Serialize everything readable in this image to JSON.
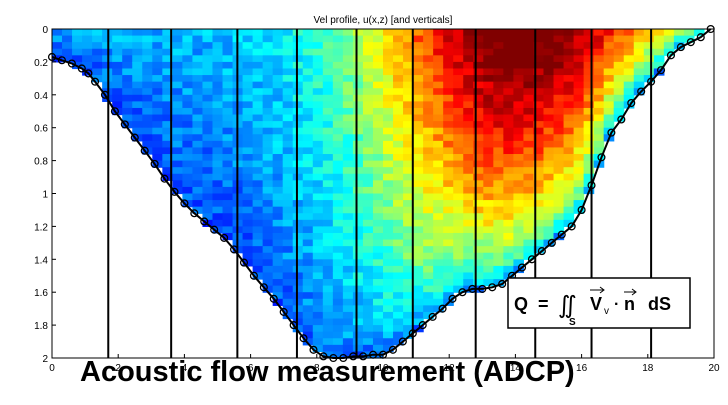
{
  "chart_data": {
    "type": "heatmap",
    "title": "Vel profile, u(x,z) [and verticals]",
    "x_ticks": [
      0,
      2,
      4,
      6,
      8,
      10,
      12,
      14,
      16,
      18,
      20
    ],
    "y_ticks": [
      0,
      0.2,
      0.4,
      0.6,
      0.8,
      1,
      1.2,
      1.4,
      1.6,
      1.8,
      2
    ],
    "xlim": [
      0,
      20
    ],
    "ylim": [
      2,
      0
    ],
    "colormap": "jet",
    "velocity_range_relative": [
      0,
      1
    ],
    "verticals_x": [
      1.7,
      3.6,
      5.6,
      7.4,
      9.2,
      10.9,
      12.8,
      14.6,
      16.3,
      18.1
    ],
    "bed_profile": {
      "x": [
        0,
        0.3,
        0.6,
        0.9,
        1.1,
        1.3,
        1.6,
        1.9,
        2.2,
        2.5,
        2.8,
        3.1,
        3.4,
        3.7,
        4.0,
        4.3,
        4.6,
        4.9,
        5.2,
        5.5,
        5.8,
        6.1,
        6.4,
        6.7,
        7.0,
        7.3,
        7.6,
        7.9,
        8.2,
        8.5,
        8.8,
        9.1,
        9.4,
        9.7,
        10.0,
        10.3,
        10.6,
        10.9,
        11.2,
        11.5,
        11.8,
        12.1,
        12.4,
        12.7,
        13.0,
        13.3,
        13.6,
        13.9,
        14.2,
        14.5,
        14.8,
        15.1,
        15.4,
        15.7,
        16.0,
        16.3,
        16.6,
        16.9,
        17.2,
        17.5,
        17.8,
        18.1,
        18.4,
        18.7,
        19.0,
        19.3,
        19.6,
        19.9
      ],
      "z": [
        0.17,
        0.19,
        0.21,
        0.24,
        0.27,
        0.32,
        0.4,
        0.5,
        0.58,
        0.66,
        0.74,
        0.82,
        0.91,
        0.99,
        1.06,
        1.12,
        1.17,
        1.22,
        1.27,
        1.34,
        1.42,
        1.5,
        1.57,
        1.64,
        1.72,
        1.8,
        1.88,
        1.95,
        1.99,
        2.0,
        2.0,
        1.99,
        1.99,
        1.98,
        1.98,
        1.95,
        1.9,
        1.85,
        1.8,
        1.75,
        1.7,
        1.64,
        1.6,
        1.58,
        1.58,
        1.57,
        1.55,
        1.5,
        1.45,
        1.4,
        1.35,
        1.3,
        1.25,
        1.2,
        1.1,
        0.95,
        0.78,
        0.63,
        0.55,
        0.45,
        0.38,
        0.32,
        0.25,
        0.16,
        0.11,
        0.08,
        0.05,
        0.0
      ]
    }
  },
  "equation": {
    "lhs": "Q",
    "equals": "=",
    "integral": "∬",
    "subscript": "S",
    "vector": "V",
    "vector_sub": "v",
    "dot": "·",
    "normal": "n",
    "differential": "dS"
  },
  "caption": "Acoustic flow measurement (ADCP)"
}
